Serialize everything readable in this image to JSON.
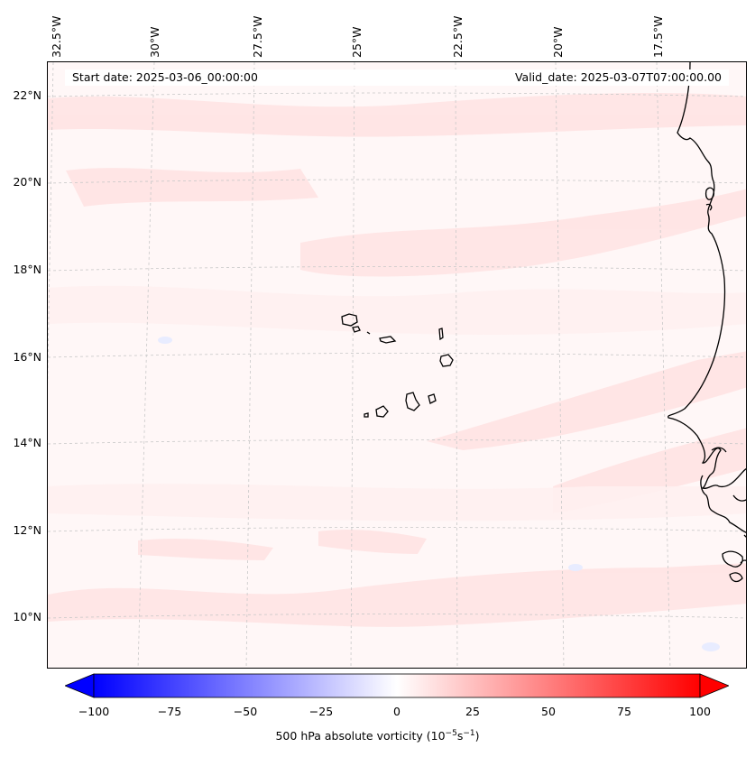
{
  "map": {
    "start_date": "Start date: 2025-03-06_00:00:00",
    "valid_date": "Valid_date: 2025-03-07T07:00:00.00",
    "lon_labels": [
      "32.5°W",
      "30°W",
      "27.5°W",
      "25°W",
      "22.5°W",
      "20°W",
      "17.5°W"
    ],
    "lat_labels": [
      "22°N",
      "20°N",
      "18°N",
      "16°N",
      "14°N",
      "12°N",
      "10°N"
    ],
    "colors": {
      "land_outline": "#000000",
      "grid": "#b0b0b0",
      "background": "#fff7f7",
      "light_red": "#ffe6e6"
    }
  },
  "colorbar": {
    "ticks": [
      "−100",
      "−75",
      "−50",
      "−25",
      "0",
      "25",
      "50",
      "75",
      "100"
    ],
    "label_main": "500 hPa absolute vorticity (10",
    "label_exp1": "−5",
    "label_mid": "s",
    "label_exp2": "−1",
    "label_end": ")",
    "min": -100,
    "max": 100,
    "low_color": "#0000ff",
    "high_color": "#ff0000",
    "mid_color": "#ffffff"
  }
}
